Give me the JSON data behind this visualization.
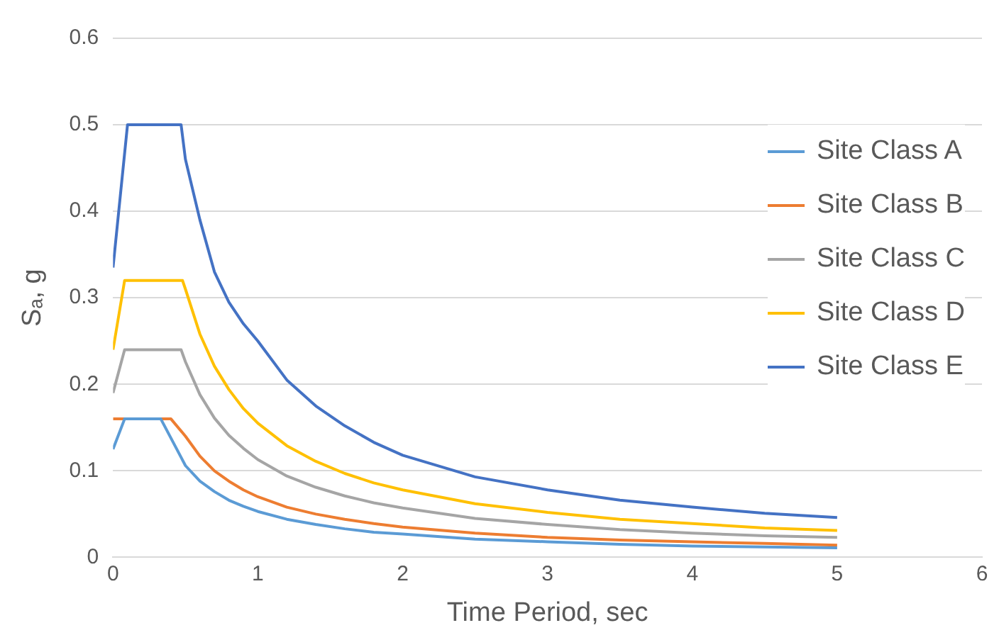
{
  "chart_data": {
    "type": "line",
    "xlabel": "Time Period, sec",
    "ylabel": "Sₐ, g",
    "xlim": [
      0,
      6
    ],
    "xticks": [
      0,
      1,
      2,
      3,
      4,
      5,
      6
    ],
    "ylim": [
      0,
      0.6
    ],
    "yticks": [
      0,
      0.1,
      0.2,
      0.3,
      0.4,
      0.5,
      0.6
    ],
    "grid": "y",
    "legend": "right",
    "marker": "none",
    "line_style": "solid",
    "series": [
      {
        "name": "Site Class A",
        "color": "#5b9bd5",
        "x": [
          0,
          0.08,
          0.33,
          0.5,
          0.6,
          0.7,
          0.8,
          0.9,
          1,
          1.2,
          1.4,
          1.6,
          1.8,
          2,
          2.5,
          3,
          3.5,
          4,
          4.5,
          5
        ],
        "values": [
          0.125,
          0.16,
          0.16,
          0.106,
          0.088,
          0.076,
          0.066,
          0.059,
          0.053,
          0.044,
          0.038,
          0.033,
          0.029,
          0.027,
          0.021,
          0.018,
          0.015,
          0.013,
          0.012,
          0.011
        ]
      },
      {
        "name": "Site Class B",
        "color": "#ed7d31",
        "x": [
          0,
          0.08,
          0.4,
          0.5,
          0.6,
          0.7,
          0.8,
          0.9,
          1,
          1.2,
          1.4,
          1.6,
          1.8,
          2,
          2.5,
          3,
          3.5,
          4,
          4.5,
          5
        ],
        "values": [
          0.16,
          0.16,
          0.16,
          0.14,
          0.117,
          0.1,
          0.088,
          0.078,
          0.07,
          0.058,
          0.05,
          0.044,
          0.039,
          0.035,
          0.028,
          0.023,
          0.02,
          0.018,
          0.016,
          0.014
        ]
      },
      {
        "name": "Site Class C",
        "color": "#a5a5a5",
        "x": [
          0,
          0.08,
          0.47,
          0.5,
          0.6,
          0.7,
          0.8,
          0.9,
          1,
          1.2,
          1.4,
          1.6,
          1.8,
          2,
          2.5,
          3,
          3.5,
          4,
          4.5,
          5
        ],
        "values": [
          0.19,
          0.24,
          0.24,
          0.226,
          0.188,
          0.161,
          0.141,
          0.126,
          0.113,
          0.094,
          0.081,
          0.071,
          0.063,
          0.057,
          0.045,
          0.038,
          0.032,
          0.028,
          0.025,
          0.023
        ]
      },
      {
        "name": "Site Class D",
        "color": "#ffc000",
        "x": [
          0,
          0.08,
          0.48,
          0.5,
          0.6,
          0.7,
          0.8,
          0.9,
          1,
          1.2,
          1.4,
          1.6,
          1.8,
          2,
          2.5,
          3,
          3.5,
          4,
          4.5,
          5
        ],
        "values": [
          0.24,
          0.32,
          0.32,
          0.31,
          0.258,
          0.221,
          0.194,
          0.172,
          0.155,
          0.129,
          0.111,
          0.097,
          0.086,
          0.078,
          0.062,
          0.052,
          0.044,
          0.039,
          0.034,
          0.031
        ]
      },
      {
        "name": "Site Class E",
        "color": "#4472c4",
        "x": [
          0,
          0.1,
          0.47,
          0.5,
          0.6,
          0.7,
          0.8,
          0.9,
          1,
          1.2,
          1.4,
          1.6,
          1.8,
          2,
          2.5,
          3,
          3.5,
          4,
          4.5,
          5
        ],
        "values": [
          0.335,
          0.5,
          0.5,
          0.46,
          0.39,
          0.33,
          0.295,
          0.27,
          0.25,
          0.205,
          0.175,
          0.152,
          0.133,
          0.118,
          0.093,
          0.078,
          0.066,
          0.058,
          0.051,
          0.046
        ]
      }
    ]
  }
}
